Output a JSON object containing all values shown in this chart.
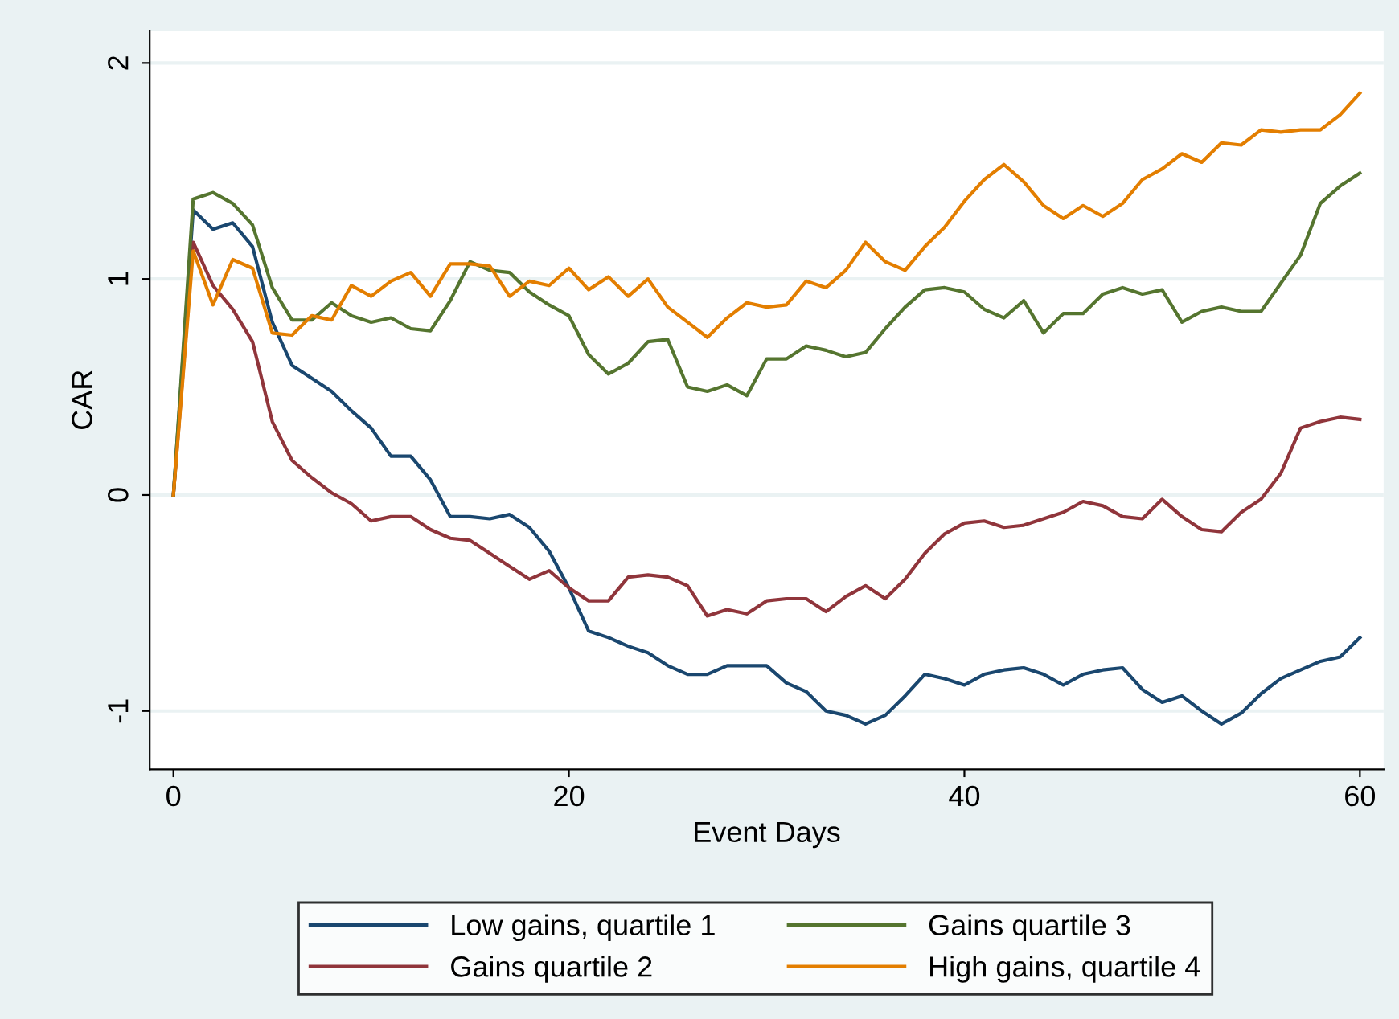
{
  "chart_data": {
    "type": "line",
    "xlabel": "Event Days",
    "ylabel": "CAR",
    "x": [
      0,
      1,
      2,
      3,
      4,
      5,
      6,
      7,
      8,
      9,
      10,
      11,
      12,
      13,
      14,
      15,
      16,
      17,
      18,
      19,
      20,
      21,
      22,
      23,
      24,
      25,
      26,
      27,
      28,
      29,
      30,
      31,
      32,
      33,
      34,
      35,
      36,
      37,
      38,
      39,
      40,
      41,
      42,
      43,
      44,
      45,
      46,
      47,
      48,
      49,
      50,
      51,
      52,
      53,
      54,
      55,
      56,
      57,
      58,
      59,
      60
    ],
    "series": [
      {
        "name": "Low gains, quartile 1",
        "color": "#1a476f",
        "values": [
          0,
          1.32,
          1.23,
          1.26,
          1.15,
          0.8,
          0.6,
          0.54,
          0.48,
          0.39,
          0.31,
          0.18,
          0.18,
          0.07,
          -0.1,
          -0.1,
          -0.11,
          -0.09,
          -0.15,
          -0.26,
          -0.43,
          -0.63,
          -0.66,
          -0.7,
          -0.73,
          -0.79,
          -0.83,
          -0.83,
          -0.79,
          -0.79,
          -0.79,
          -0.87,
          -0.91,
          -1.0,
          -1.02,
          -1.06,
          -1.02,
          -0.93,
          -0.83,
          -0.85,
          -0.88,
          -0.83,
          -0.81,
          -0.8,
          -0.83,
          -0.88,
          -0.83,
          -0.81,
          -0.8,
          -0.9,
          -0.96,
          -0.93,
          -1.0,
          -1.06,
          -1.01,
          -0.92,
          -0.85,
          -0.81,
          -0.77,
          -0.75,
          -0.66
        ]
      },
      {
        "name": "Gains quartile 2",
        "color": "#90353b",
        "values": [
          0,
          1.17,
          0.97,
          0.86,
          0.71,
          0.34,
          0.16,
          0.08,
          0.01,
          -0.04,
          -0.12,
          -0.1,
          -0.1,
          -0.16,
          -0.2,
          -0.21,
          -0.27,
          -0.33,
          -0.39,
          -0.35,
          -0.43,
          -0.49,
          -0.49,
          -0.38,
          -0.37,
          -0.38,
          -0.42,
          -0.56,
          -0.53,
          -0.55,
          -0.49,
          -0.48,
          -0.48,
          -0.54,
          -0.47,
          -0.42,
          -0.48,
          -0.39,
          -0.27,
          -0.18,
          -0.13,
          -0.12,
          -0.15,
          -0.14,
          -0.11,
          -0.08,
          -0.03,
          -0.05,
          -0.1,
          -0.11,
          -0.02,
          -0.1,
          -0.16,
          -0.17,
          -0.08,
          -0.02,
          0.1,
          0.31,
          0.34,
          0.36,
          0.35
        ]
      },
      {
        "name": "Gains quartile 3",
        "color": "#55752f",
        "values": [
          0,
          1.37,
          1.4,
          1.35,
          1.25,
          0.96,
          0.81,
          0.81,
          0.89,
          0.83,
          0.8,
          0.82,
          0.77,
          0.76,
          0.9,
          1.08,
          1.04,
          1.03,
          0.94,
          0.88,
          0.83,
          0.65,
          0.56,
          0.61,
          0.71,
          0.72,
          0.5,
          0.48,
          0.51,
          0.46,
          0.63,
          0.63,
          0.69,
          0.67,
          0.64,
          0.66,
          0.77,
          0.87,
          0.95,
          0.96,
          0.94,
          0.86,
          0.82,
          0.9,
          0.75,
          0.84,
          0.84,
          0.93,
          0.96,
          0.93,
          0.95,
          0.8,
          0.85,
          0.87,
          0.85,
          0.85,
          0.98,
          1.11,
          1.35,
          1.43,
          1.49
        ]
      },
      {
        "name": "High gains, quartile 4",
        "color": "#e37e00",
        "values": [
          0,
          1.13,
          0.88,
          1.09,
          1.05,
          0.75,
          0.74,
          0.83,
          0.81,
          0.97,
          0.92,
          0.99,
          1.03,
          0.92,
          1.07,
          1.07,
          1.06,
          0.92,
          0.99,
          0.97,
          1.05,
          0.95,
          1.01,
          0.92,
          1.0,
          0.87,
          0.8,
          0.73,
          0.82,
          0.89,
          0.87,
          0.88,
          0.99,
          0.96,
          1.04,
          1.17,
          1.08,
          1.04,
          1.15,
          1.24,
          1.36,
          1.46,
          1.53,
          1.45,
          1.34,
          1.28,
          1.34,
          1.29,
          1.35,
          1.46,
          1.51,
          1.58,
          1.54,
          1.63,
          1.62,
          1.69,
          1.68,
          1.69,
          1.69,
          1.76,
          1.86
        ]
      }
    ],
    "xlim": [
      -1.2,
      61.2
    ],
    "ylim": [
      -1.27,
      2.15
    ],
    "xticks": [
      0,
      20,
      40,
      60
    ],
    "yticks": [
      {
        "value": -1,
        "label": "-1"
      },
      0,
      1,
      2
    ],
    "grid": "y",
    "legend": "bottom",
    "marker": "none",
    "line_style": "solid"
  }
}
